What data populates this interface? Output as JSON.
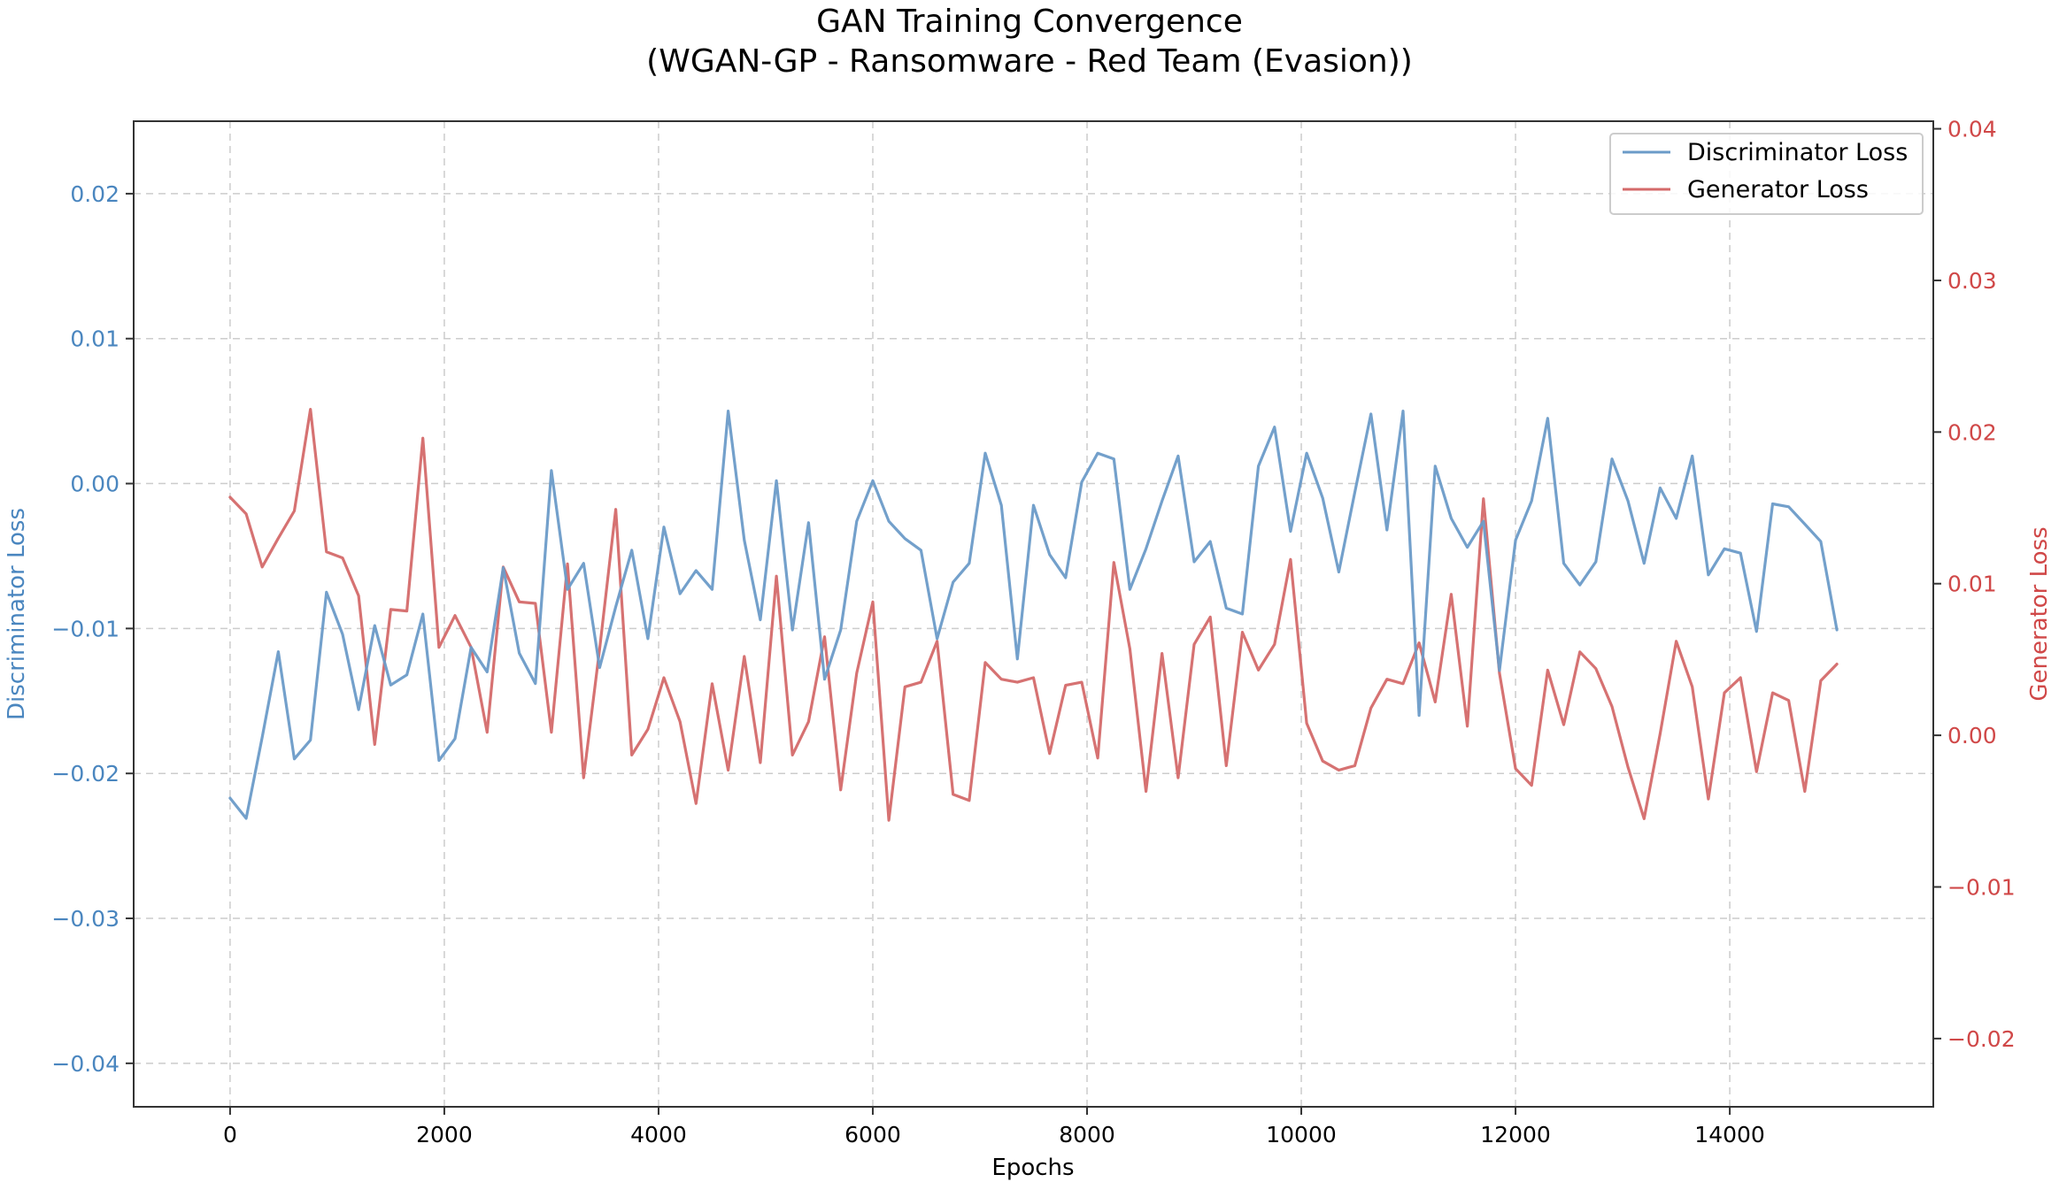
{
  "chart_data": {
    "type": "line",
    "title": "GAN Training Convergence",
    "subtitle": "(WGAN-GP - Ransomware - Red Team (Evasion))",
    "xlabel": "Epochs",
    "ylabel_left": "Discriminator Loss",
    "ylabel_right": "Generator Loss",
    "xlim": [
      -900,
      15900
    ],
    "ylim_left": [
      -0.043,
      0.025
    ],
    "ylim_right": [
      -0.0245,
      0.0405
    ],
    "x_ticks": [
      0,
      2000,
      4000,
      6000,
      8000,
      10000,
      12000,
      14000
    ],
    "x_tick_labels": [
      "0",
      "2000",
      "4000",
      "6000",
      "8000",
      "10000",
      "12000",
      "14000"
    ],
    "y_left_ticks": [
      0.02,
      0.01,
      0.0,
      -0.01,
      -0.02,
      -0.03,
      -0.04
    ],
    "y_left_tick_labels": [
      "0.02",
      "0.01",
      "0.00",
      "−0.01",
      "−0.02",
      "−0.03",
      "−0.04"
    ],
    "y_right_ticks": [
      0.04,
      0.03,
      0.02,
      0.01,
      0.0,
      -0.01,
      -0.02
    ],
    "y_right_tick_labels": [
      "0.04",
      "0.03",
      "0.02",
      "0.01",
      "0.00",
      "−0.01",
      "−0.02"
    ],
    "grid": true,
    "legend_position": "top-right",
    "x": [
      0,
      150,
      300,
      450,
      600,
      750,
      900,
      1050,
      1200,
      1350,
      1500,
      1650,
      1800,
      1950,
      2100,
      2250,
      2400,
      2550,
      2700,
      2850,
      3000,
      3150,
      3300,
      3450,
      3600,
      3750,
      3900,
      4050,
      4200,
      4350,
      4500,
      4650,
      4800,
      4950,
      5100,
      5250,
      5400,
      5550,
      5700,
      5850,
      6000,
      6150,
      6300,
      6450,
      6600,
      6750,
      6900,
      7050,
      7200,
      7350,
      7500,
      7650,
      7800,
      7950,
      8100,
      8250,
      8400,
      8550,
      8700,
      8850,
      9000,
      9150,
      9300,
      9450,
      9600,
      9750,
      9900,
      10050,
      10200,
      10350,
      10500,
      10650,
      10800,
      10950,
      11100,
      11250,
      11400,
      11550,
      11700,
      11850,
      12000,
      12150,
      12300,
      12450,
      12600,
      12750,
      12900,
      13050,
      13200,
      13350,
      13500,
      13650,
      13800,
      13950,
      14100,
      14250,
      14400,
      14550,
      14700,
      14850,
      15000
    ],
    "series": [
      {
        "name": "Discriminator Loss",
        "axis": "left",
        "color": "#6b9bc8",
        "values": [
          -0.0217,
          -0.0231,
          -0.0175,
          -0.0116,
          -0.019,
          -0.0177,
          -0.0075,
          -0.0104,
          -0.0156,
          -0.0098,
          -0.0139,
          -0.0132,
          -0.009,
          -0.0191,
          -0.0176,
          -0.0113,
          -0.013,
          -0.0058,
          -0.0117,
          -0.0138,
          0.0009,
          -0.0073,
          -0.0055,
          -0.0127,
          -0.0085,
          -0.0046,
          -0.0107,
          -0.003,
          -0.0076,
          -0.006,
          -0.0073,
          0.005,
          -0.0039,
          -0.0094,
          0.0002,
          -0.0101,
          -0.0027,
          -0.0135,
          -0.0101,
          -0.0026,
          0.0002,
          -0.0026,
          -0.0038,
          -0.0046,
          -0.0107,
          -0.0068,
          -0.0055,
          0.0021,
          -0.0015,
          -0.0121,
          -0.0015,
          -0.0049,
          -0.0065,
          0.0001,
          0.0021,
          0.0017,
          -0.0073,
          -0.0045,
          -0.0012,
          0.0019,
          -0.0054,
          -0.004,
          -0.0086,
          -0.009,
          0.0012,
          0.0039,
          -0.0033,
          0.0021,
          -0.001,
          -0.0061,
          -0.0006,
          0.0048,
          -0.0032,
          0.005,
          -0.016,
          0.0012,
          -0.0024,
          -0.0044,
          -0.0026,
          -0.0129,
          -0.0039,
          -0.0012,
          0.0045,
          -0.0055,
          -0.007,
          -0.0054,
          0.0017,
          -0.0012,
          -0.0055,
          -0.0003,
          -0.0024,
          0.0019,
          -0.0063,
          -0.0045,
          -0.0048,
          -0.0102,
          -0.0014,
          -0.0016,
          -0.0028,
          -0.004,
          -0.0101
        ]
      },
      {
        "name": "Generator Loss",
        "axis": "right",
        "color": "#d46a6a",
        "values": [
          0.0157,
          0.0146,
          0.0111,
          0.013,
          0.0148,
          0.0215,
          0.0121,
          0.0117,
          0.0092,
          -0.0006,
          0.0083,
          0.0082,
          0.0196,
          0.0058,
          0.0079,
          0.0058,
          0.0002,
          0.0111,
          0.0088,
          0.0087,
          0.0002,
          0.0113,
          -0.0028,
          0.0057,
          0.0149,
          -0.0013,
          0.0004,
          0.0038,
          0.0009,
          -0.0045,
          0.0034,
          -0.0023,
          0.0052,
          -0.0018,
          0.0105,
          -0.0013,
          0.0009,
          0.0065,
          -0.0036,
          0.0041,
          0.0088,
          -0.0056,
          0.0032,
          0.0035,
          0.0062,
          -0.0039,
          -0.0043,
          0.0048,
          0.0037,
          0.0035,
          0.0038,
          -0.0012,
          0.0033,
          0.0035,
          -0.0015,
          0.0114,
          0.0057,
          -0.0037,
          0.0054,
          -0.0028,
          0.006,
          0.0078,
          -0.002,
          0.0068,
          0.0043,
          0.006,
          0.0116,
          0.0008,
          -0.0017,
          -0.0023,
          -0.002,
          0.0018,
          0.0037,
          0.0034,
          0.0061,
          0.0022,
          0.0093,
          0.0006,
          0.0156,
          0.0041,
          -0.0022,
          -0.0033,
          0.0043,
          0.0007,
          0.0055,
          0.0044,
          0.0019,
          -0.0021,
          -0.0055,
          0.0001,
          0.0062,
          0.0032,
          -0.0042,
          0.0028,
          0.0038,
          -0.0024,
          0.0028,
          0.0023,
          -0.0037,
          0.0036,
          0.0047
        ]
      }
    ]
  }
}
